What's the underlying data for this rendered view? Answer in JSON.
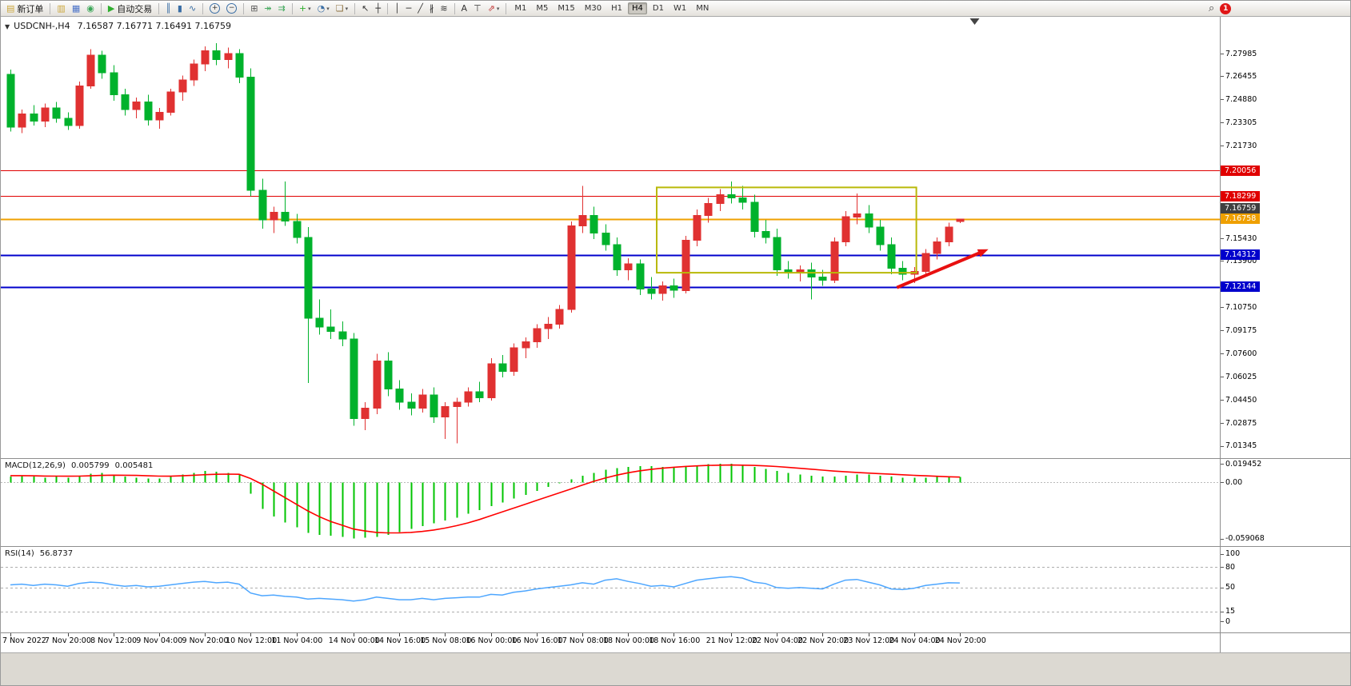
{
  "toolbar": {
    "groups": [
      {
        "name": "order-group",
        "items": [
          {
            "name": "new-order-button",
            "icon": "new-order-icon",
            "glyph": "▤",
            "color": "#caa53a",
            "label": "新订单"
          }
        ]
      },
      {
        "name": "window-group",
        "items": [
          {
            "name": "charts-button",
            "icon": "charts-icon",
            "glyph": "▥",
            "color": "#caa53a"
          },
          {
            "name": "profiles-button",
            "icon": "profiles-icon",
            "glyph": "▦",
            "color": "#4a72c8"
          },
          {
            "name": "terminal-button",
            "icon": "terminal-icon",
            "glyph": "◉",
            "color": "#3aa657"
          }
        ]
      },
      {
        "name": "autotrade-group",
        "items": [
          {
            "name": "autotrade-button",
            "icon": "autotrade-play-icon",
            "glyph": "▶",
            "color": "#2fae2f",
            "label": "自动交易"
          }
        ]
      },
      {
        "name": "chart-type-group",
        "items": [
          {
            "name": "bar-chart-button",
            "icon": "bar-chart-icon",
            "glyph": "║",
            "color": "#3a6ea5"
          },
          {
            "name": "candlestick-chart-button",
            "icon": "candlestick-icon",
            "glyph": "▮",
            "color": "#3a6ea5"
          },
          {
            "name": "line-chart-button",
            "icon": "line-chart-icon",
            "glyph": "∿",
            "color": "#3a6ea5"
          }
        ]
      },
      {
        "name": "zoom-group",
        "items": [
          {
            "name": "zoom-in-button",
            "icon": "zoom-in-icon",
            "glyph": "+",
            "circle": true
          },
          {
            "name": "zoom-out-button",
            "icon": "zoom-out-icon",
            "glyph": "−",
            "circle": true
          }
        ]
      },
      {
        "name": "layout-group",
        "items": [
          {
            "name": "tile-windows-button",
            "icon": "tile-windows-icon",
            "glyph": "⊞",
            "color": "#555555"
          },
          {
            "name": "auto-scroll-button",
            "icon": "auto-scroll-icon",
            "glyph": "↠",
            "color": "#3aa657"
          },
          {
            "name": "chart-shift-button",
            "icon": "chart-shift-icon",
            "glyph": "⇉",
            "color": "#3aa657"
          }
        ]
      },
      {
        "name": "insert-group",
        "items": [
          {
            "name": "indicators-button",
            "icon": "indicators-icon",
            "glyph": "+",
            "color": "#2fae2f",
            "dropdown": true
          },
          {
            "name": "periods-button",
            "icon": "clock-icon",
            "glyph": "◔",
            "color": "#3a6ea5",
            "dropdown": true
          },
          {
            "name": "templates-button",
            "icon": "template-icon",
            "glyph": "❏",
            "color": "#8a6d3b",
            "dropdown": true
          }
        ]
      },
      {
        "name": "cursor-group",
        "items": [
          {
            "name": "cursor-button",
            "icon": "cursor-icon",
            "glyph": "↖",
            "color": "#333333"
          },
          {
            "name": "crosshair-button",
            "icon": "crosshair-icon",
            "glyph": "┼",
            "color": "#333333"
          }
        ]
      },
      {
        "name": "draw-group",
        "items": [
          {
            "name": "vertical-line-button",
            "icon": "vertical-line-icon",
            "glyph": "│",
            "color": "#333333"
          },
          {
            "name": "horizontal-line-button",
            "icon": "horizontal-line-icon",
            "glyph": "─",
            "color": "#333333"
          },
          {
            "name": "trendline-button",
            "icon": "trendline-icon",
            "glyph": "╱",
            "color": "#333333"
          },
          {
            "name": "channel-button",
            "icon": "channel-icon",
            "glyph": "∦",
            "color": "#333333"
          },
          {
            "name": "fibonacci-button",
            "icon": "fibonacci-icon",
            "glyph": "≋",
            "color": "#333333"
          }
        ]
      },
      {
        "name": "text-group",
        "items": [
          {
            "name": "text-button",
            "icon": "text-icon",
            "glyph": "A",
            "color": "#333333"
          },
          {
            "name": "text-label-button",
            "icon": "text-label-icon",
            "glyph": "⊤",
            "color": "#333333"
          },
          {
            "name": "arrows-button",
            "icon": "arrow-tool-icon",
            "glyph": "⇗",
            "color": "#c03030",
            "dropdown": true
          }
        ]
      }
    ],
    "timeframes": [
      "M1",
      "M5",
      "M15",
      "M30",
      "H1",
      "H4",
      "D1",
      "W1",
      "MN"
    ],
    "active_timeframe": "H4",
    "search_glyph": "⌕",
    "notification_count": "1"
  },
  "chart": {
    "title_symbol": "USDCNH-,H4",
    "title_ohlc": "7.16587 7.16771 7.16491 7.16759",
    "menu_glyph": "▼"
  },
  "panels": {
    "macd": {
      "label": "MACD(12,26,9)",
      "value_main": "0.005799",
      "value_signal": "0.005481"
    },
    "rsi": {
      "label": "RSI(14)",
      "value": "56.8737"
    }
  },
  "chart_data": {
    "type": "candlestick",
    "symbol": "USDCNH-",
    "timeframe": "H4",
    "up_color": "#e03131",
    "down_color": "#00b22c",
    "price_range": [
      7.005,
      7.305
    ],
    "y_ticks": [
      "7.27985",
      "7.26455",
      "7.24880",
      "7.23305",
      "7.21730",
      "7.15430",
      "7.13900",
      "7.10750",
      "7.09175",
      "7.07600",
      "7.06025",
      "7.04450",
      "7.02875",
      "7.01345"
    ],
    "candles": [
      [
        7.266,
        7.269,
        7.227,
        7.23
      ],
      [
        7.23,
        7.242,
        7.226,
        7.239
      ],
      [
        7.239,
        7.245,
        7.231,
        7.234
      ],
      [
        7.234,
        7.246,
        7.23,
        7.243
      ],
      [
        7.243,
        7.247,
        7.233,
        7.236
      ],
      [
        7.236,
        7.24,
        7.228,
        7.231
      ],
      [
        7.231,
        7.261,
        7.229,
        7.258
      ],
      [
        7.258,
        7.283,
        7.256,
        7.279
      ],
      [
        7.279,
        7.282,
        7.263,
        7.267
      ],
      [
        7.267,
        7.272,
        7.248,
        7.252
      ],
      [
        7.252,
        7.256,
        7.238,
        7.242
      ],
      [
        7.242,
        7.25,
        7.236,
        7.247
      ],
      [
        7.247,
        7.252,
        7.231,
        7.235
      ],
      [
        7.235,
        7.243,
        7.229,
        7.24
      ],
      [
        7.24,
        7.256,
        7.238,
        7.254
      ],
      [
        7.254,
        7.265,
        7.248,
        7.262
      ],
      [
        7.262,
        7.276,
        7.258,
        7.273
      ],
      [
        7.273,
        7.285,
        7.268,
        7.282
      ],
      [
        7.282,
        7.287,
        7.272,
        7.276
      ],
      [
        7.276,
        7.284,
        7.27,
        7.28
      ],
      [
        7.28,
        7.283,
        7.26,
        7.264
      ],
      [
        7.264,
        7.27,
        7.183,
        7.187
      ],
      [
        7.187,
        7.195,
        7.161,
        7.167
      ],
      [
        7.167,
        7.176,
        7.158,
        7.172
      ],
      [
        7.172,
        7.193,
        7.163,
        7.166
      ],
      [
        7.166,
        7.171,
        7.151,
        7.155
      ],
      [
        7.155,
        7.162,
        7.056,
        7.1
      ],
      [
        7.1,
        7.113,
        7.089,
        7.094
      ],
      [
        7.094,
        7.106,
        7.086,
        7.091
      ],
      [
        7.091,
        7.098,
        7.081,
        7.086
      ],
      [
        7.086,
        7.09,
        7.027,
        7.032
      ],
      [
        7.032,
        7.043,
        7.024,
        7.039
      ],
      [
        7.039,
        7.076,
        7.035,
        7.071
      ],
      [
        7.071,
        7.077,
        7.047,
        7.052
      ],
      [
        7.052,
        7.058,
        7.038,
        7.043
      ],
      [
        7.043,
        7.049,
        7.034,
        7.039
      ],
      [
        7.039,
        7.052,
        7.036,
        7.048
      ],
      [
        7.048,
        7.053,
        7.029,
        7.033
      ],
      [
        7.033,
        7.043,
        7.018,
        7.04
      ],
      [
        7.04,
        7.046,
        7.015,
        7.043
      ],
      [
        7.043,
        7.053,
        7.04,
        7.05
      ],
      [
        7.05,
        7.057,
        7.043,
        7.046
      ],
      [
        7.046,
        7.073,
        7.044,
        7.069
      ],
      [
        7.069,
        7.075,
        7.06,
        7.064
      ],
      [
        7.064,
        7.083,
        7.061,
        7.08
      ],
      [
        7.08,
        7.087,
        7.073,
        7.084
      ],
      [
        7.084,
        7.096,
        7.08,
        7.093
      ],
      [
        7.093,
        7.101,
        7.086,
        7.096
      ],
      [
        7.096,
        7.109,
        7.093,
        7.106
      ],
      [
        7.106,
        7.166,
        7.104,
        7.163
      ],
      [
        7.163,
        7.19,
        7.158,
        7.17
      ],
      [
        7.17,
        7.176,
        7.154,
        7.158
      ],
      [
        7.158,
        7.164,
        7.146,
        7.15
      ],
      [
        7.15,
        7.155,
        7.129,
        7.133
      ],
      [
        7.133,
        7.141,
        7.126,
        7.137
      ],
      [
        7.137,
        7.14,
        7.116,
        7.12
      ],
      [
        7.12,
        7.128,
        7.113,
        7.117
      ],
      [
        7.117,
        7.125,
        7.112,
        7.122
      ],
      [
        7.122,
        7.127,
        7.114,
        7.119
      ],
      [
        7.119,
        7.156,
        7.117,
        7.153
      ],
      [
        7.153,
        7.174,
        7.149,
        7.17
      ],
      [
        7.17,
        7.182,
        7.165,
        7.178
      ],
      [
        7.178,
        7.188,
        7.173,
        7.184
      ],
      [
        7.184,
        7.193,
        7.178,
        7.182
      ],
      [
        7.182,
        7.19,
        7.174,
        7.179
      ],
      [
        7.179,
        7.184,
        7.155,
        7.159
      ],
      [
        7.159,
        7.167,
        7.151,
        7.155
      ],
      [
        7.155,
        7.161,
        7.129,
        7.133
      ],
      [
        7.133,
        7.139,
        7.127,
        7.131
      ],
      [
        7.131,
        7.136,
        7.125,
        7.133
      ],
      [
        7.133,
        7.138,
        7.113,
        7.128
      ],
      [
        7.128,
        7.133,
        7.122,
        7.126
      ],
      [
        7.126,
        7.155,
        7.124,
        7.152
      ],
      [
        7.152,
        7.173,
        7.149,
        7.169
      ],
      [
        7.169,
        7.185,
        7.164,
        7.171
      ],
      [
        7.171,
        7.177,
        7.158,
        7.162
      ],
      [
        7.162,
        7.167,
        7.146,
        7.15
      ],
      [
        7.15,
        7.155,
        7.13,
        7.134
      ],
      [
        7.134,
        7.139,
        7.126,
        7.13
      ],
      [
        7.13,
        7.135,
        7.124,
        7.132
      ],
      [
        7.132,
        7.147,
        7.129,
        7.144
      ],
      [
        7.144,
        7.155,
        7.14,
        7.152
      ],
      [
        7.152,
        7.165,
        7.149,
        7.162
      ],
      [
        7.16587,
        7.16771,
        7.16491,
        7.16759
      ]
    ],
    "time_labels": [
      {
        "bar": 0,
        "label": "7 Nov 2022"
      },
      {
        "bar": 5,
        "label": "7 Nov 20:00"
      },
      {
        "bar": 9,
        "label": "8 Nov 12:00"
      },
      {
        "bar": 13,
        "label": "9 Nov 04:00"
      },
      {
        "bar": 17,
        "label": "9 Nov 20:00"
      },
      {
        "bar": 21,
        "label": "10 Nov 12:00"
      },
      {
        "bar": 25,
        "label": "11 Nov 04:00"
      },
      {
        "bar": 30,
        "label": "14 Nov 00:00"
      },
      {
        "bar": 34,
        "label": "14 Nov 16:00"
      },
      {
        "bar": 38,
        "label": "15 Nov 08:00"
      },
      {
        "bar": 42,
        "label": "16 Nov 00:00"
      },
      {
        "bar": 46,
        "label": "16 Nov 16:00"
      },
      {
        "bar": 50,
        "label": "17 Nov 08:00"
      },
      {
        "bar": 54,
        "label": "18 Nov 00:00"
      },
      {
        "bar": 58,
        "label": "18 Nov 16:00"
      },
      {
        "bar": 63,
        "label": "21 Nov 12:00"
      },
      {
        "bar": 67,
        "label": "22 Nov 04:00"
      },
      {
        "bar": 71,
        "label": "22 Nov 20:00"
      },
      {
        "bar": 75,
        "label": "23 Nov 12:00"
      },
      {
        "bar": 79,
        "label": "24 Nov 04:00"
      },
      {
        "bar": 83,
        "label": "24 Nov 20:00"
      }
    ],
    "hlines": [
      {
        "price": 7.20056,
        "label": "7.20056",
        "color": "#e00000",
        "width": 1
      },
      {
        "price": 7.18299,
        "label": "7.18299",
        "color": "#e00000",
        "width": 1
      },
      {
        "price": 7.16758,
        "label": "7.16758",
        "color": "#efa000",
        "width": 2
      },
      {
        "price": 7.14312,
        "label": "7.14312",
        "color": "#0000cc",
        "width": 2
      },
      {
        "price": 7.12144,
        "label": "7.12144",
        "color": "#0000cc",
        "width": 2
      }
    ],
    "bid_label": {
      "price": 7.16759,
      "label": "7.16759",
      "color": "#404040"
    },
    "rectangle": {
      "bar_start": 56.5,
      "bar_end": 79.2,
      "price_top": 7.189,
      "price_bottom": 7.131,
      "color": "#b9b909"
    },
    "arrow": {
      "bar_start": 77.5,
      "price_start": 7.121,
      "bar_end": 85.5,
      "price_end": 7.147,
      "color": "#e81010"
    },
    "shift_marker_bar": 84.3,
    "macd": {
      "range": [
        -0.066,
        0.0245
      ],
      "hist_color": "#00c400",
      "signal_color": "#ff0000",
      "y_ticks": [
        {
          "v": 0.019452,
          "label": "0.019452"
        },
        {
          "v": 0,
          "label": "0.00"
        },
        {
          "v": -0.059068,
          "label": "-0.059068"
        }
      ],
      "histogram": [
        0.006,
        0.007,
        0.006,
        0.005,
        0.006,
        0.005,
        0.007,
        0.009,
        0.01,
        0.008,
        0.006,
        0.005,
        0.004,
        0.004,
        0.006,
        0.008,
        0.01,
        0.012,
        0.011,
        0.01,
        0.008,
        -0.012,
        -0.028,
        -0.036,
        -0.042,
        -0.047,
        -0.053,
        -0.055,
        -0.056,
        -0.057,
        -0.059,
        -0.058,
        -0.057,
        -0.055,
        -0.052,
        -0.049,
        -0.046,
        -0.043,
        -0.04,
        -0.037,
        -0.033,
        -0.029,
        -0.025,
        -0.021,
        -0.017,
        -0.013,
        -0.009,
        -0.005,
        -0.001,
        0.003,
        0.007,
        0.01,
        0.013,
        0.015,
        0.016,
        0.017,
        0.017,
        0.016,
        0.016,
        0.017,
        0.018,
        0.019,
        0.0195,
        0.0193,
        0.018,
        0.016,
        0.014,
        0.012,
        0.01,
        0.008,
        0.007,
        0.006,
        0.006,
        0.007,
        0.008,
        0.008,
        0.007,
        0.006,
        0.005,
        0.005,
        0.005,
        0.006,
        0.006,
        0.0058
      ],
      "signal": [
        0.007,
        0.007,
        0.0068,
        0.0066,
        0.0065,
        0.0064,
        0.0065,
        0.0068,
        0.0072,
        0.0075,
        0.0074,
        0.0072,
        0.0068,
        0.0065,
        0.0064,
        0.0068,
        0.0074,
        0.008,
        0.0084,
        0.0086,
        0.0084,
        0.004,
        -0.002,
        -0.009,
        -0.016,
        -0.023,
        -0.03,
        -0.036,
        -0.041,
        -0.045,
        -0.049,
        -0.051,
        -0.0525,
        -0.053,
        -0.053,
        -0.0525,
        -0.0515,
        -0.05,
        -0.048,
        -0.0455,
        -0.0425,
        -0.039,
        -0.035,
        -0.031,
        -0.027,
        -0.023,
        -0.019,
        -0.015,
        -0.011,
        -0.007,
        -0.003,
        0.001,
        0.0045,
        0.0075,
        0.01,
        0.012,
        0.0135,
        0.0148,
        0.0158,
        0.0166,
        0.0172,
        0.0177,
        0.018,
        0.0181,
        0.018,
        0.0177,
        0.0172,
        0.0165,
        0.0156,
        0.0147,
        0.0138,
        0.0128,
        0.0118,
        0.011,
        0.0103,
        0.0097,
        0.0091,
        0.0085,
        0.0079,
        0.0073,
        0.0068,
        0.0063,
        0.0058,
        0.0055
      ]
    },
    "rsi": {
      "range": [
        -15,
        110
      ],
      "color": "#4da6ff",
      "levels": [
        80,
        50,
        15
      ],
      "y_ticks": [
        {
          "v": 100,
          "label": "100"
        },
        {
          "v": 80,
          "label": "80"
        },
        {
          "v": 50,
          "label": "50"
        },
        {
          "v": 15,
          "label": "15"
        },
        {
          "v": 0,
          "label": "0"
        }
      ],
      "values": [
        54,
        55,
        53,
        55,
        54,
        52,
        56,
        58,
        57,
        54,
        52,
        53,
        51,
        52,
        54,
        56,
        58,
        59,
        57,
        58,
        55,
        42,
        38,
        39,
        37,
        36,
        33,
        34,
        33,
        32,
        30,
        32,
        36,
        34,
        32,
        32,
        34,
        32,
        34,
        35,
        36,
        36,
        40,
        39,
        43,
        45,
        48,
        50,
        52,
        54,
        57,
        55,
        61,
        63,
        59,
        56,
        52,
        53,
        51,
        56,
        61,
        63,
        65,
        66,
        64,
        58,
        56,
        50,
        49,
        50,
        49,
        48,
        55,
        61,
        62,
        58,
        54,
        48,
        47,
        49,
        53,
        55,
        57,
        56.87
      ]
    }
  }
}
